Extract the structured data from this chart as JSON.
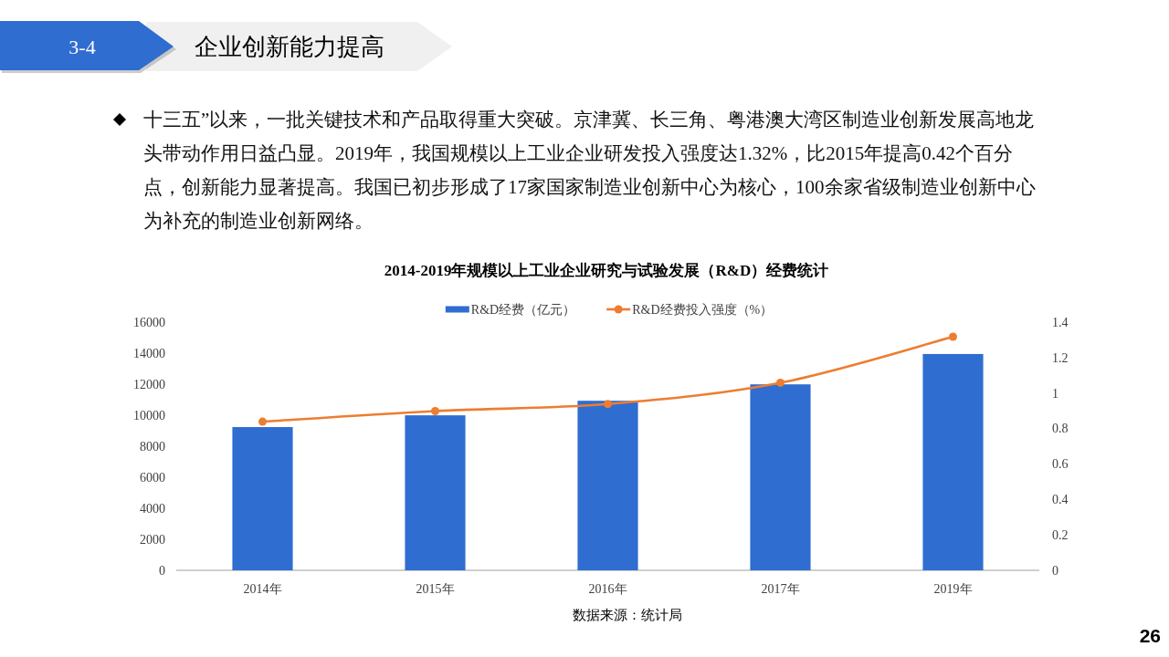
{
  "chart_data": {
    "type": "bar",
    "title": "2014-2019年规模以上工业企业研究与试验发展（R&D）经费统计",
    "categories": [
      "2014年",
      "2015年",
      "2016年",
      "2017年",
      "2019年"
    ],
    "series": [
      {
        "name": "R&D经费（亿元）",
        "type": "bar",
        "color": "#2f6dd0",
        "values": [
          9250,
          10010,
          10950,
          12010,
          13970
        ]
      },
      {
        "name": "R&D经费投入强度（%）",
        "type": "line",
        "axis": "y2",
        "color": "#ed7d31",
        "marker": "circle",
        "values": [
          0.84,
          0.9,
          0.94,
          1.06,
          1.32
        ]
      }
    ],
    "ylim": [
      0,
      16000
    ],
    "yticks": [
      0,
      2000,
      4000,
      6000,
      8000,
      10000,
      12000,
      14000,
      16000
    ],
    "y2lim": [
      0,
      1.4
    ],
    "y2ticks": [
      0,
      0.2,
      0.4,
      0.6,
      0.8,
      1,
      1.2,
      1.4
    ],
    "legend": "top",
    "grid": false,
    "annotations": [
      "3-4",
      "企业创新能力提高",
      "十三五”以来，一批关键技术和产品取得重大突破。京津冀、长三角、粤港澳大湾区制造业创新发展高地龙头带动作用日益凸显。2019年，我国规模以上工业企业研发投入强度达1.32%，比2015年提高0.42个百分点，创新能力显著提高。我国已初步形成了17家国家制造业创新中心为核心，100余家省级制造业创新中心为补充的制造业创新网络。",
      "数据来源：统计局",
      "26"
    ]
  }
}
